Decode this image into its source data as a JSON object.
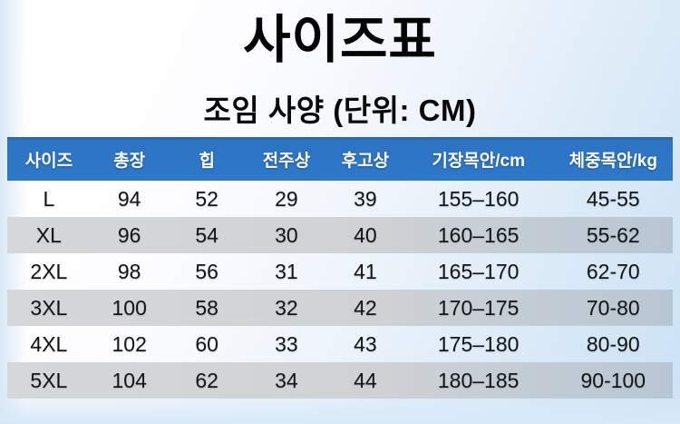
{
  "page": {
    "title": "사이즈표",
    "subtitle": "조임 사양 (단위: CM)"
  },
  "size_table": {
    "columns": [
      "사이즈",
      "총장",
      "힙",
      "전주상",
      "후고상",
      "기장목안/cm",
      "체중목안/kg"
    ],
    "rows": [
      [
        "L",
        "94",
        "52",
        "29",
        "39",
        "155–160",
        "45-55"
      ],
      [
        "XL",
        "96",
        "54",
        "30",
        "40",
        "160–165",
        "55-62"
      ],
      [
        "2XL",
        "98",
        "56",
        "31",
        "41",
        "165–170",
        "62-70"
      ],
      [
        "3XL",
        "100",
        "58",
        "32",
        "42",
        "170–175",
        "70-80"
      ],
      [
        "4XL",
        "102",
        "60",
        "33",
        "43",
        "175–180",
        "80-90"
      ],
      [
        "5XL",
        "104",
        "62",
        "34",
        "44",
        "180–185",
        "90-100"
      ]
    ]
  },
  "colors": {
    "header_bg": "#2e78c8",
    "header_text": "#ffffff",
    "alt_row_bg_left": "#d6d7d8",
    "alt_row_bg_right": "#b8c6d4",
    "body_text": "#151515",
    "background_top_left": "#ffffff",
    "background_bottom_right": "#cbe2f5"
  }
}
